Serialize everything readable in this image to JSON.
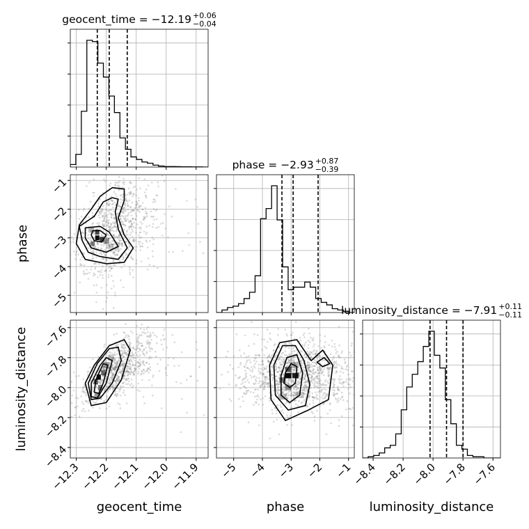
{
  "chart_data": {
    "type": "corner",
    "params": [
      "geocent_time",
      "phase",
      "luminosity_distance"
    ],
    "titles": {
      "geocent_time": {
        "text": "geocent_time = −12.19",
        "plus": "+0.06",
        "minus": "−0.04"
      },
      "phase": {
        "text": "phase = −2.93",
        "plus": "+0.87",
        "minus": "−0.39"
      },
      "luminosity_distance": {
        "text": "luminosity_distance = −7.91",
        "plus": "+0.11",
        "minus": "−0.11"
      }
    },
    "axis_labels": {
      "geocent_time": "geocent_time",
      "phase": "phase",
      "luminosity_distance": "luminosity_distance"
    },
    "ranges": {
      "geocent_time": [
        -12.32,
        -11.86
      ],
      "phase": [
        -5.6,
        -0.8
      ],
      "luminosity_distance": [
        -8.47,
        -7.55
      ]
    },
    "ticks": {
      "geocent_time": [
        {
          "v": -12.3,
          "label": "−12.3"
        },
        {
          "v": -12.2,
          "label": "−12.2"
        },
        {
          "v": -12.1,
          "label": "−12.1"
        },
        {
          "v": -12.0,
          "label": "−12.0"
        },
        {
          "v": -11.9,
          "label": "−11.9"
        }
      ],
      "phase": [
        {
          "v": -5,
          "label": "−5"
        },
        {
          "v": -4,
          "label": "−4"
        },
        {
          "v": -3,
          "label": "−3"
        },
        {
          "v": -2,
          "label": "−2"
        },
        {
          "v": -1,
          "label": "−1"
        }
      ],
      "luminosity_distance": [
        {
          "v": -8.4,
          "label": "−8.4"
        },
        {
          "v": -8.2,
          "label": "−8.2"
        },
        {
          "v": -8.0,
          "label": "−8.0"
        },
        {
          "v": -7.8,
          "label": "−7.8"
        },
        {
          "v": -7.6,
          "label": "−7.6"
        }
      ]
    },
    "quantiles": {
      "geocent_time": [
        -12.23,
        -12.19,
        -12.13
      ],
      "phase": [
        -3.32,
        -2.93,
        -2.06
      ],
      "luminosity_distance": [
        -8.02,
        -7.91,
        -7.8
      ]
    },
    "histograms": {
      "geocent_time": {
        "x0": -12.32,
        "dx": 0.0184,
        "counts": [
          0.02,
          0.1,
          0.44,
          1.0,
          0.99,
          0.82,
          0.71,
          0.56,
          0.43,
          0.23,
          0.14,
          0.08,
          0.06,
          0.04,
          0.03,
          0.015,
          0.008,
          0.004,
          0.004,
          0.003,
          0.002,
          0.002,
          0.001,
          0.001,
          0.0
        ]
      },
      "phase": {
        "x0": -5.6,
        "dx": 0.192,
        "counts": [
          0.0,
          0.02,
          0.04,
          0.05,
          0.07,
          0.11,
          0.16,
          0.29,
          0.74,
          0.82,
          1.0,
          0.73,
          0.36,
          0.18,
          0.2,
          0.2,
          0.24,
          0.2,
          0.11,
          0.08,
          0.06,
          0.03,
          0.02,
          0.01,
          0.0
        ]
      },
      "luminosity_distance": {
        "x0": -8.47,
        "dx": 0.0368,
        "counts": [
          0.0,
          0.01,
          0.02,
          0.04,
          0.08,
          0.1,
          0.19,
          0.38,
          0.56,
          0.66,
          0.76,
          0.88,
          1.0,
          0.81,
          0.71,
          0.46,
          0.27,
          0.1,
          0.07,
          0.02,
          0.01,
          0.01,
          0.0,
          0.0,
          0.0
        ]
      }
    },
    "pairs": [
      {
        "x": "geocent_time",
        "y": "phase",
        "density": [
          {
            "x": -12.23,
            "y": -3.0,
            "w": 0.014,
            "h": 0.17,
            "a": 0.95
          },
          {
            "x": -12.23,
            "y": -2.8,
            "w": 0.014,
            "h": 0.17,
            "a": 0.7
          },
          {
            "x": -12.215,
            "y": -3.05,
            "w": 0.014,
            "h": 0.17,
            "a": 0.75
          },
          {
            "x": -12.245,
            "y": -3.2,
            "w": 0.014,
            "h": 0.17,
            "a": 0.5
          },
          {
            "x": -12.2,
            "y": -3.1,
            "w": 0.02,
            "h": 0.2,
            "a": 0.35
          },
          {
            "x": -12.185,
            "y": -3.3,
            "w": 0.02,
            "h": 0.2,
            "a": 0.2
          },
          {
            "x": -12.25,
            "y": -2.7,
            "w": 0.02,
            "h": 0.2,
            "a": 0.25
          }
        ],
        "contours": [
          [
            [
              -12.245,
              -2.75
            ],
            [
              -12.22,
              -2.75
            ],
            [
              -12.2,
              -2.9
            ],
            [
              -12.215,
              -3.15
            ],
            [
              -12.24,
              -3.1
            ],
            [
              -12.25,
              -2.9
            ]
          ],
          [
            [
              -12.27,
              -2.65
            ],
            [
              -12.22,
              -2.6
            ],
            [
              -12.19,
              -2.8
            ],
            [
              -12.16,
              -3.3
            ],
            [
              -12.2,
              -3.5
            ],
            [
              -12.25,
              -3.35
            ],
            [
              -12.27,
              -3.0
            ]
          ],
          [
            [
              -12.29,
              -2.6
            ],
            [
              -12.24,
              -2.25
            ],
            [
              -12.21,
              -1.75
            ],
            [
              -12.18,
              -1.6
            ],
            [
              -12.16,
              -1.65
            ],
            [
              -12.17,
              -2.1
            ],
            [
              -12.16,
              -2.7
            ],
            [
              -12.13,
              -3.35
            ],
            [
              -12.16,
              -3.75
            ],
            [
              -12.22,
              -3.65
            ],
            [
              -12.26,
              -3.5
            ],
            [
              -12.28,
              -3.1
            ]
          ],
          [
            [
              -12.29,
              -2.55
            ],
            [
              -12.25,
              -2.0
            ],
            [
              -12.22,
              -1.55
            ],
            [
              -12.18,
              -1.25
            ],
            [
              -12.14,
              -1.3
            ],
            [
              -12.14,
              -1.7
            ],
            [
              -12.16,
              -2.3
            ],
            [
              -12.14,
              -2.9
            ],
            [
              -12.11,
              -3.35
            ],
            [
              -12.14,
              -3.85
            ],
            [
              -12.2,
              -3.9
            ],
            [
              -12.27,
              -3.75
            ],
            [
              -12.3,
              -3.2
            ]
          ]
        ],
        "scatter": {
          "cx": -12.18,
          "cy": -2.8,
          "sx": 0.06,
          "sy": 0.9,
          "rho": 0.35,
          "n": 900,
          "tail": true
        }
      },
      {
        "x": "geocent_time",
        "y": "luminosity_distance",
        "density": [
          {
            "x": -12.225,
            "y": -7.93,
            "w": 0.014,
            "h": 0.035,
            "a": 0.95
          },
          {
            "x": -12.21,
            "y": -7.9,
            "w": 0.014,
            "h": 0.035,
            "a": 0.55
          },
          {
            "x": -12.235,
            "y": -7.96,
            "w": 0.014,
            "h": 0.035,
            "a": 0.6
          },
          {
            "x": -12.22,
            "y": -8.0,
            "w": 0.014,
            "h": 0.035,
            "a": 0.5
          },
          {
            "x": -12.2,
            "y": -7.85,
            "w": 0.02,
            "h": 0.04,
            "a": 0.35
          },
          {
            "x": -12.23,
            "y": -8.05,
            "w": 0.02,
            "h": 0.04,
            "a": 0.35
          },
          {
            "x": -12.185,
            "y": -7.8,
            "w": 0.02,
            "h": 0.04,
            "a": 0.2
          }
        ],
        "contours": [
          [
            [
              -12.235,
              -7.95
            ],
            [
              -12.21,
              -7.84
            ],
            [
              -12.195,
              -7.85
            ],
            [
              -12.21,
              -7.97
            ],
            [
              -12.225,
              -8.04
            ],
            [
              -12.24,
              -8.03
            ]
          ],
          [
            [
              -12.25,
              -7.97
            ],
            [
              -12.22,
              -7.85
            ],
            [
              -12.2,
              -7.8
            ],
            [
              -12.18,
              -7.82
            ],
            [
              -12.2,
              -7.97
            ],
            [
              -12.23,
              -8.07
            ],
            [
              -12.25,
              -8.06
            ]
          ],
          [
            [
              -12.26,
              -7.97
            ],
            [
              -12.23,
              -7.84
            ],
            [
              -12.19,
              -7.74
            ],
            [
              -12.16,
              -7.73
            ],
            [
              -12.15,
              -7.82
            ],
            [
              -12.18,
              -7.97
            ],
            [
              -12.22,
              -8.07
            ],
            [
              -12.25,
              -8.08
            ]
          ],
          [
            [
              -12.27,
              -7.97
            ],
            [
              -12.24,
              -7.85
            ],
            [
              -12.19,
              -7.72
            ],
            [
              -12.14,
              -7.68
            ],
            [
              -12.12,
              -7.75
            ],
            [
              -12.15,
              -7.95
            ],
            [
              -12.2,
              -8.1
            ],
            [
              -12.25,
              -8.12
            ]
          ]
        ],
        "scatter": {
          "cx": -12.17,
          "cy": -7.88,
          "sx": 0.06,
          "sy": 0.12,
          "rho": 0.7,
          "n": 900,
          "tail": true
        }
      },
      {
        "x": "phase",
        "y": "luminosity_distance",
        "density": [
          {
            "x": -3.1,
            "y": -7.92,
            "w": 0.22,
            "h": 0.035,
            "a": 0.95
          },
          {
            "x": -2.85,
            "y": -7.92,
            "w": 0.22,
            "h": 0.035,
            "a": 0.85
          },
          {
            "x": -3.1,
            "y": -7.88,
            "w": 0.22,
            "h": 0.035,
            "a": 0.55
          },
          {
            "x": -3.3,
            "y": -7.95,
            "w": 0.22,
            "h": 0.035,
            "a": 0.5
          },
          {
            "x": -3.1,
            "y": -8.0,
            "w": 0.22,
            "h": 0.035,
            "a": 0.45
          },
          {
            "x": -2.9,
            "y": -7.85,
            "w": 0.3,
            "h": 0.04,
            "a": 0.3
          },
          {
            "x": -3.3,
            "y": -8.06,
            "w": 0.3,
            "h": 0.04,
            "a": 0.25
          },
          {
            "x": -2.7,
            "y": -8.05,
            "w": 0.3,
            "h": 0.04,
            "a": 0.2
          }
        ],
        "contours": [
          [
            [
              -3.2,
              -7.9
            ],
            [
              -3.0,
              -7.84
            ],
            [
              -2.8,
              -7.86
            ],
            [
              -2.85,
              -7.97
            ],
            [
              -3.05,
              -8.0
            ],
            [
              -3.25,
              -7.97
            ]
          ],
          [
            [
              -3.35,
              -7.92
            ],
            [
              -3.15,
              -7.8
            ],
            [
              -2.8,
              -7.78
            ],
            [
              -2.6,
              -7.9
            ],
            [
              -2.7,
              -8.05
            ],
            [
              -3.05,
              -8.1
            ],
            [
              -3.35,
              -8.05
            ]
          ],
          [
            [
              -3.6,
              -7.85
            ],
            [
              -3.3,
              -7.72
            ],
            [
              -2.85,
              -7.72
            ],
            [
              -2.55,
              -7.82
            ],
            [
              -2.35,
              -7.98
            ],
            [
              -2.5,
              -8.12
            ],
            [
              -3.1,
              -8.15
            ],
            [
              -3.55,
              -8.05
            ]
          ],
          [
            [
              -3.75,
              -7.85
            ],
            [
              -3.4,
              -7.7
            ],
            [
              -2.8,
              -7.68
            ],
            [
              -2.3,
              -7.82
            ],
            [
              -1.9,
              -7.75
            ],
            [
              -1.55,
              -7.85
            ],
            [
              -1.7,
              -8.08
            ],
            [
              -2.4,
              -8.15
            ],
            [
              -3.2,
              -8.22
            ],
            [
              -3.7,
              -8.08
            ]
          ],
          [
            [
              -2.1,
              -7.83
            ],
            [
              -1.85,
              -7.8
            ],
            [
              -1.65,
              -7.84
            ],
            [
              -1.9,
              -7.86
            ]
          ]
        ],
        "scatter": {
          "cx": -2.8,
          "cy": -7.92,
          "sx": 1.0,
          "sy": 0.12,
          "rho": 0.0,
          "n": 1300,
          "tail": false
        }
      }
    ],
    "grid": true
  }
}
